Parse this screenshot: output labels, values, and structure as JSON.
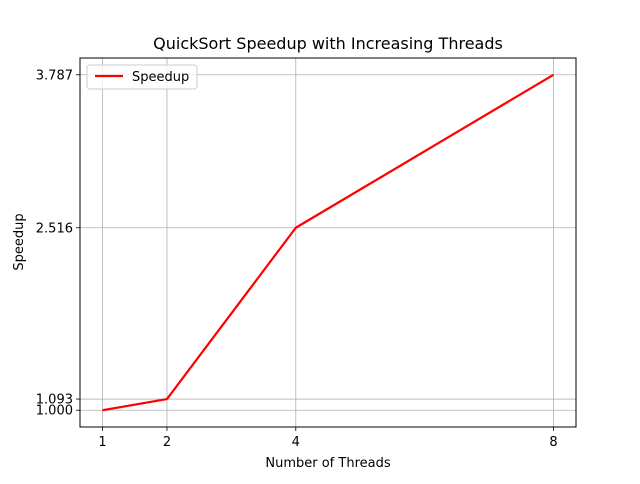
{
  "chart_data": {
    "type": "line",
    "title": "QuickSort Speedup with Increasing Threads",
    "xlabel": "Number of Threads",
    "ylabel": "Speedup",
    "x": [
      1,
      2,
      4,
      8
    ],
    "series": [
      {
        "name": "Speedup",
        "values": [
          1.0,
          1.093,
          2.516,
          3.787
        ],
        "color": "#ff0000"
      }
    ],
    "xticks": [
      1,
      2,
      4,
      8
    ],
    "xtick_labels": [
      "1",
      "2",
      "4",
      "8"
    ],
    "yticks": [
      1.0,
      1.093,
      2.516,
      3.787
    ],
    "ytick_labels": [
      "1.000",
      "1.093",
      "2.516",
      "3.787"
    ],
    "xlim": [
      0.65,
      8.35
    ],
    "ylim": [
      0.8607,
      3.9263
    ],
    "grid": true,
    "legend_position": "upper left"
  }
}
